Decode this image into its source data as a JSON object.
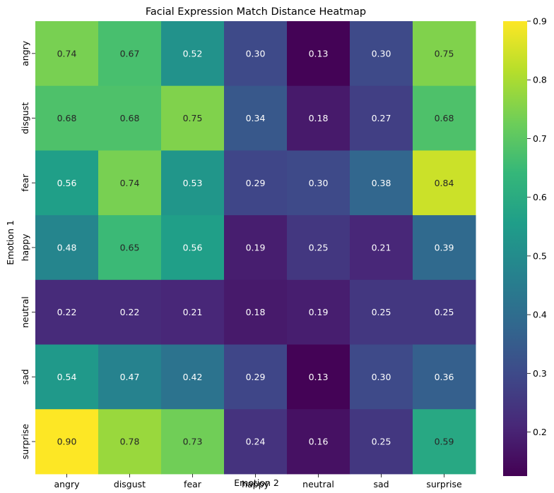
{
  "chart_data": {
    "type": "heatmap",
    "title": "Facial Expression Match Distance Heatmap",
    "xlabel": "Emotion 2",
    "ylabel": "Emotion 1",
    "x_categories": [
      "angry",
      "disgust",
      "fear",
      "happy",
      "neutral",
      "sad",
      "surprise"
    ],
    "y_categories": [
      "angry",
      "disgust",
      "fear",
      "happy",
      "neutral",
      "sad",
      "surprise"
    ],
    "values": [
      [
        0.74,
        0.67,
        0.52,
        0.3,
        0.13,
        0.3,
        0.75
      ],
      [
        0.68,
        0.68,
        0.75,
        0.34,
        0.18,
        0.27,
        0.68
      ],
      [
        0.56,
        0.74,
        0.53,
        0.29,
        0.3,
        0.38,
        0.84
      ],
      [
        0.48,
        0.65,
        0.56,
        0.19,
        0.25,
        0.21,
        0.39
      ],
      [
        0.22,
        0.22,
        0.21,
        0.18,
        0.19,
        0.25,
        0.25
      ],
      [
        0.54,
        0.47,
        0.42,
        0.29,
        0.13,
        0.3,
        0.36
      ],
      [
        0.9,
        0.78,
        0.73,
        0.24,
        0.16,
        0.25,
        0.59
      ]
    ],
    "colormap": "viridis",
    "vmin": 0.125,
    "vmax": 0.9,
    "colorbar_ticks": [
      0.2,
      0.3,
      0.4,
      0.5,
      0.6,
      0.7,
      0.8,
      0.9
    ],
    "grid": false,
    "annotations": true
  }
}
